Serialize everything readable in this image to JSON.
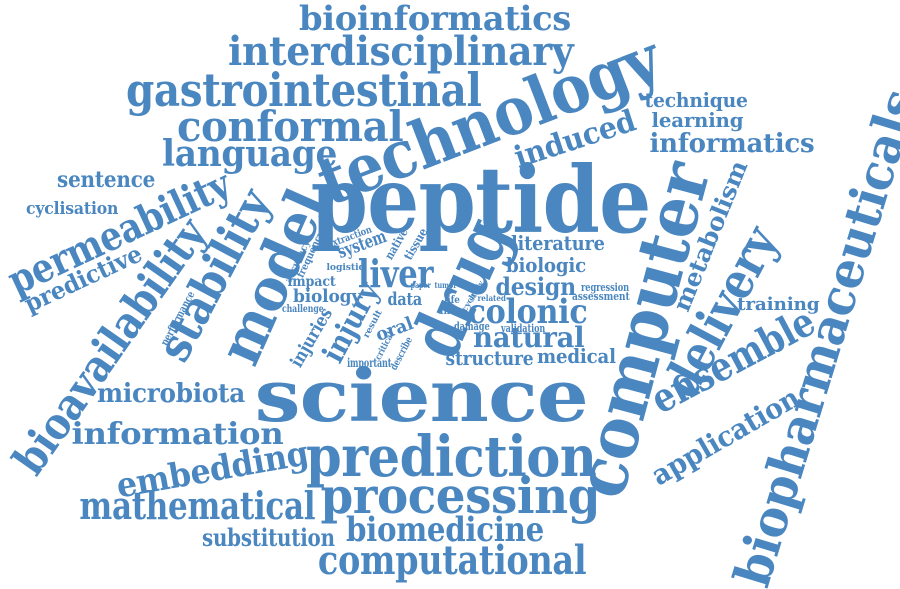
{
  "color": "#4a86bf",
  "words": [
    {
      "text": "bioinformatics",
      "name": "word-bioinformatics"
    },
    {
      "text": "interdisciplinary",
      "name": "word-interdisciplinary"
    },
    {
      "text": "gastrointestinal",
      "name": "word-gastrointestinal"
    },
    {
      "text": "technology",
      "name": "word-technology"
    },
    {
      "text": "conformal",
      "name": "word-conformal"
    },
    {
      "text": "language",
      "name": "word-language"
    },
    {
      "text": "technique",
      "name": "word-technique"
    },
    {
      "text": "learning",
      "name": "word-learning"
    },
    {
      "text": "informatics",
      "name": "word-informatics"
    },
    {
      "text": "induced",
      "name": "word-induced"
    },
    {
      "text": "sentence",
      "name": "word-sentence"
    },
    {
      "text": "cyclisation",
      "name": "word-cyclisation"
    },
    {
      "text": "permeability",
      "name": "word-permeability"
    },
    {
      "text": "predictive",
      "name": "word-predictive"
    },
    {
      "text": "bioavailability",
      "name": "word-bioavailability"
    },
    {
      "text": "stability",
      "name": "word-stability"
    },
    {
      "text": "model",
      "name": "word-model"
    },
    {
      "text": "peptide",
      "name": "word-peptide"
    },
    {
      "text": "drug",
      "name": "word-drug"
    },
    {
      "text": "computer",
      "name": "word-computer"
    },
    {
      "text": "biopharmaceuticals",
      "name": "word-biopharmaceuticals"
    },
    {
      "text": "metabolism",
      "name": "word-metabolism"
    },
    {
      "text": "delivery",
      "name": "word-delivery"
    },
    {
      "text": "ensemble",
      "name": "word-ensemble"
    },
    {
      "text": "application",
      "name": "word-application"
    },
    {
      "text": "training",
      "name": "word-training"
    },
    {
      "text": "literature",
      "name": "word-literature"
    },
    {
      "text": "biologic",
      "name": "word-biologic"
    },
    {
      "text": "design",
      "name": "word-design"
    },
    {
      "text": "colonic",
      "name": "word-colonic"
    },
    {
      "text": "natural",
      "name": "word-natural"
    },
    {
      "text": "structure",
      "name": "word-structure"
    },
    {
      "text": "medical",
      "name": "word-medical"
    },
    {
      "text": "liver",
      "name": "word-liver"
    },
    {
      "text": "system",
      "name": "word-system"
    },
    {
      "text": "impact",
      "name": "word-impact"
    },
    {
      "text": "biology",
      "name": "word-biology"
    },
    {
      "text": "data",
      "name": "word-data"
    },
    {
      "text": "injury",
      "name": "word-injury"
    },
    {
      "text": "injuries",
      "name": "word-injuries"
    },
    {
      "text": "oral",
      "name": "word-oral"
    },
    {
      "text": "extraction",
      "name": "word-extraction"
    },
    {
      "text": "native",
      "name": "word-native"
    },
    {
      "text": "tissue",
      "name": "word-tissue"
    },
    {
      "text": "accuracy",
      "name": "word-accuracy"
    },
    {
      "text": "frequency",
      "name": "word-frequency"
    },
    {
      "text": "logistic",
      "name": "word-logistic"
    },
    {
      "text": "challenge",
      "name": "word-challenge"
    },
    {
      "text": "performance",
      "name": "word-performance"
    },
    {
      "text": "important",
      "name": "word-important"
    },
    {
      "text": "regression",
      "name": "word-regression"
    },
    {
      "text": "assessment",
      "name": "word-assessment"
    },
    {
      "text": "life",
      "name": "word-life"
    },
    {
      "text": "filter",
      "name": "word-filter"
    },
    {
      "text": "cycle",
      "name": "word-cycle"
    },
    {
      "text": "paper",
      "name": "word-paper"
    },
    {
      "text": "tumor",
      "name": "word-tumor"
    },
    {
      "text": "study",
      "name": "word-study"
    },
    {
      "text": "related",
      "name": "word-related"
    },
    {
      "text": "damage",
      "name": "word-damage"
    },
    {
      "text": "validation",
      "name": "word-validation"
    },
    {
      "text": "result",
      "name": "word-result"
    },
    {
      "text": "critical",
      "name": "word-critical"
    },
    {
      "text": "describe",
      "name": "word-describe"
    },
    {
      "text": "science",
      "name": "word-science"
    },
    {
      "text": "microbiota",
      "name": "word-microbiota"
    },
    {
      "text": "information",
      "name": "word-information"
    },
    {
      "text": "embedding",
      "name": "word-embedding"
    },
    {
      "text": "prediction",
      "name": "word-prediction"
    },
    {
      "text": "processing",
      "name": "word-processing"
    },
    {
      "text": "mathematical",
      "name": "word-mathematical"
    },
    {
      "text": "substitution",
      "name": "word-substitution"
    },
    {
      "text": "biomedicine",
      "name": "word-biomedicine"
    },
    {
      "text": "computational",
      "name": "word-computational"
    }
  ]
}
